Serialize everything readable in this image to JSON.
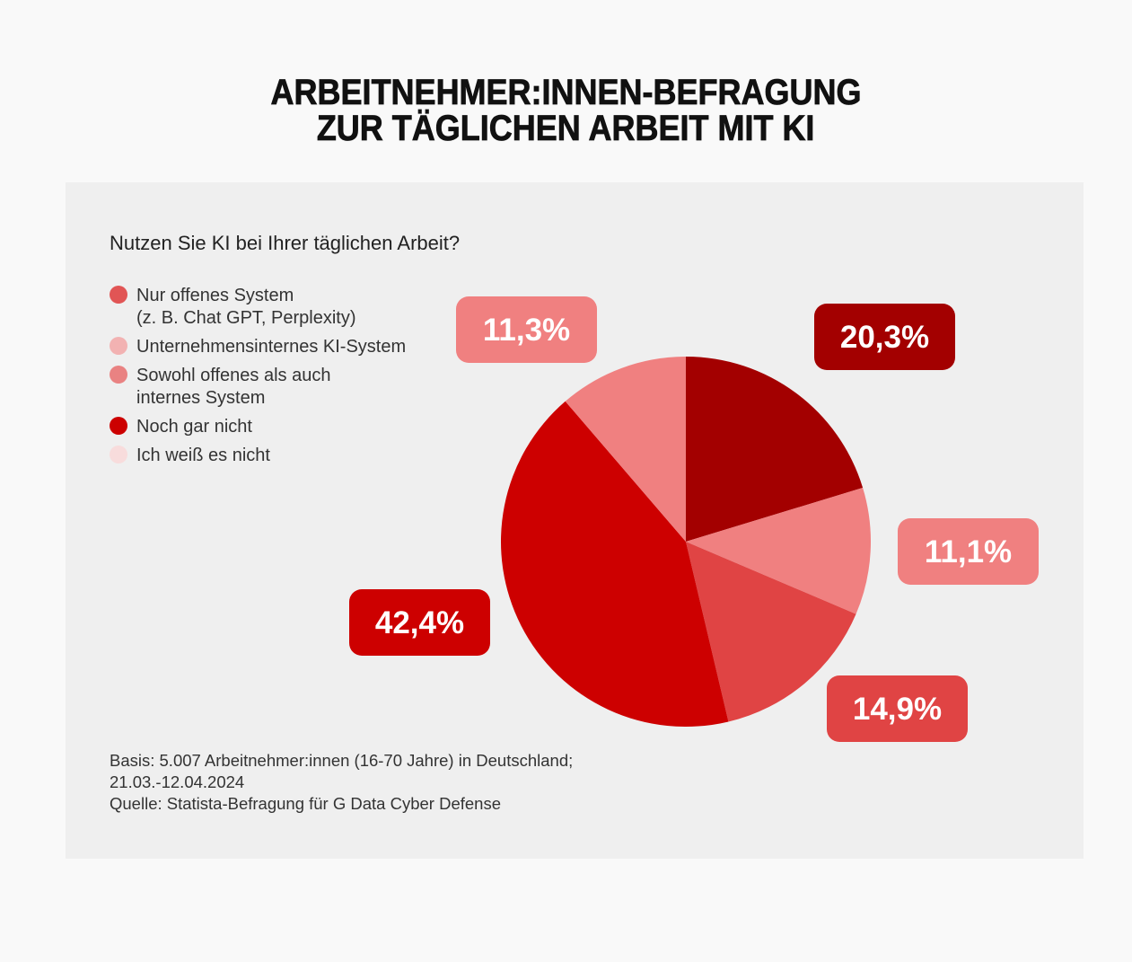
{
  "title": {
    "lines": [
      "ARBEITNEHMER:INNEN-BEFRAGUNG",
      "ZUR TÄGLICHEN ARBEIT MIT KI"
    ]
  },
  "chart_data": {
    "type": "pie",
    "title": "Nutzen Sie KI bei Ihrer täglichen Arbeit?",
    "categories": [
      [
        "Nur offenes System",
        "(z. B. Chat GPT, Perplexity)"
      ],
      [
        "Unternehmensinternes KI-System"
      ],
      [
        "Sowohl offenes als auch",
        "internes System"
      ],
      [
        "Noch gar nicht"
      ],
      [
        "Ich weiß es nicht"
      ]
    ],
    "values": [
      20.3,
      11.1,
      14.9,
      42.4,
      11.3
    ],
    "data_labels": [
      "20,3%",
      "11,1%",
      "14,9%",
      "42,4%",
      "11,3%"
    ],
    "slice_colors": [
      "#a30000",
      "#f08080",
      "#e04444",
      "#cd0000",
      "#f08080"
    ],
    "legend_colors": [
      "#e15555",
      "#f2b2b2",
      "#e98282",
      "#cc0000",
      "#f8dcdc"
    ],
    "legend_position": "top-left"
  },
  "footer": {
    "lines": [
      "Basis: 5.007 Arbeitnehmer:innen (16-70 Jahre) in Deutschland;",
      "21.03.-12.04.2024",
      "Quelle: Statista-Befragung für G Data Cyber Defense"
    ]
  }
}
